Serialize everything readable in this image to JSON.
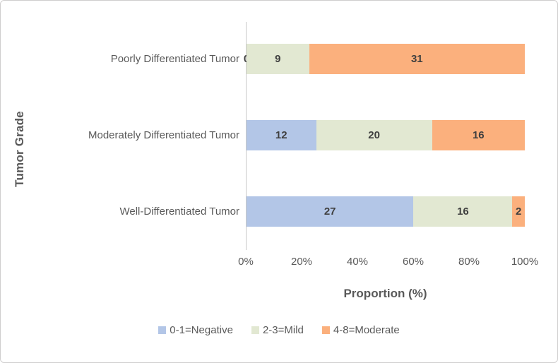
{
  "chart_data": {
    "type": "bar",
    "subtype": "100%-stacked-horizontal",
    "categories": [
      "Poorly Differentiated Tumor",
      "Moderately Differentiated Tumor",
      "Well-Differentiated Tumor"
    ],
    "series": [
      {
        "name": "0-1=Negative",
        "color": "#b3c6e7",
        "values": [
          0,
          12,
          27
        ]
      },
      {
        "name": "2-3=Mild",
        "color": "#e2e8d2",
        "values": [
          9,
          20,
          16
        ]
      },
      {
        "name": "4-8=Moderate",
        "color": "#fbb07d",
        "values": [
          31,
          16,
          2
        ]
      }
    ],
    "xlabel": "Proportion (%)",
    "ylabel": "Tumor Grade",
    "x_ticks": [
      "0%",
      "20%",
      "40%",
      "60%",
      "80%",
      "100%"
    ],
    "xlim": [
      0,
      100
    ],
    "grid": false,
    "legend_position": "bottom",
    "data_labels_shown": true
  },
  "colors": {
    "data_label_text": "#3f3f3f",
    "axis_text": "#595959",
    "axis_line": "#c8c8c8",
    "frame_border": "#cfcdcd",
    "background": "#ffffff"
  }
}
